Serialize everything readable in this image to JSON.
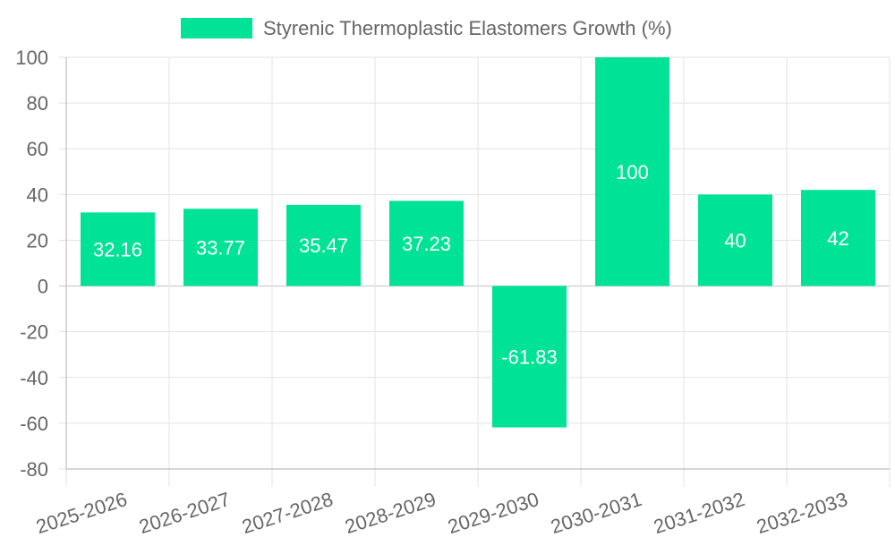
{
  "chart_data": {
    "type": "bar",
    "title": "",
    "xlabel": "",
    "ylabel": "",
    "categories": [
      "2025-2026",
      "2026-2027",
      "2027-2028",
      "2028-2029",
      "2029-2030",
      "2030-2031",
      "2031-2032",
      "2032-2033"
    ],
    "series": [
      {
        "name": "Styrenic Thermoplastic Elastomers Growth (%)",
        "values": [
          32.16,
          33.77,
          35.47,
          37.23,
          -61.83,
          100,
          40,
          42
        ]
      }
    ],
    "data_labels": [
      "32.16",
      "33.77",
      "35.47",
      "37.23",
      "-61.83",
      "100",
      "40",
      "42"
    ],
    "ylim": [
      -80,
      100
    ],
    "y_ticks": [
      100,
      80,
      60,
      40,
      20,
      0,
      -20,
      -40,
      -60,
      -80
    ],
    "y_tick_labels": [
      "100",
      "80",
      "60",
      "40",
      "20",
      "0",
      "-20",
      "-40",
      "-60",
      "-80"
    ],
    "grid": true,
    "legend_position": "top-center",
    "bar_color": "#00e396"
  }
}
